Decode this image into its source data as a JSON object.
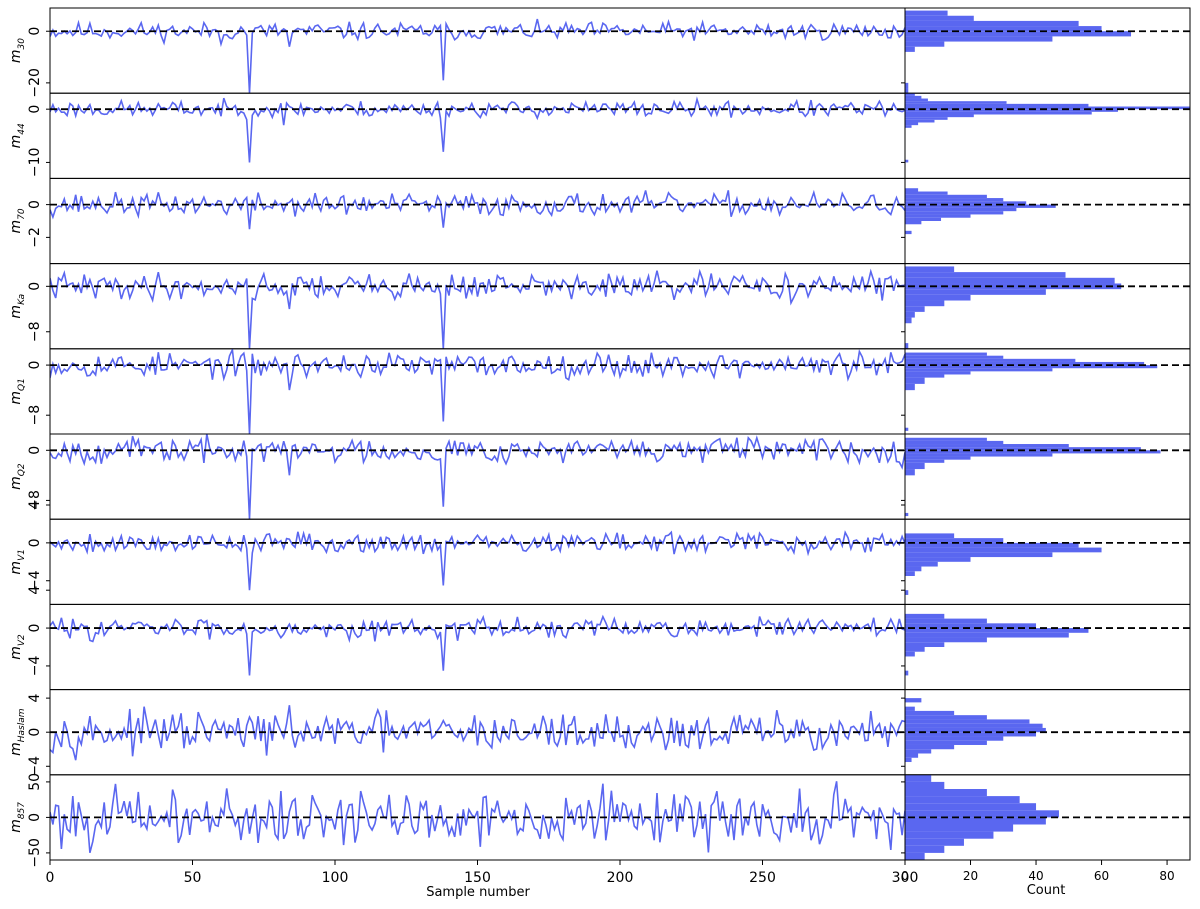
{
  "chart_data": {
    "type": "line",
    "series_color": "#5a67f0",
    "reference_line_color": "#000000",
    "x_axis": {
      "xlabel": "Sample number",
      "xlim": [
        0,
        300
      ],
      "ticks": [
        0,
        50,
        100,
        150,
        200,
        250,
        300
      ],
      "tick_labels": [
        "0",
        "50",
        "100",
        "150",
        "200",
        "250",
        "300"
      ]
    },
    "hist_axis": {
      "xlabel": "Count",
      "xlim": [
        0,
        87
      ],
      "ticks": [
        0,
        20,
        40,
        60,
        80
      ],
      "tick_labels": [
        "0",
        "20",
        "40",
        "60",
        "80"
      ]
    },
    "panels": [
      {
        "label_main": "m",
        "label_sub": "30",
        "ylim": [
          -24,
          9
        ],
        "yticks": [
          0,
          -20
        ],
        "ytick_labels": [
          "0",
          "−20"
        ],
        "trace": {
          "seed": 11,
          "sd": 2.2,
          "spikes": [
            [
              70,
              -24
            ],
            [
              138,
              -19
            ],
            [
              84,
              -6
            ],
            [
              60,
              -5
            ]
          ]
        },
        "hist": {
          "bins": [
            [
              -24,
              -22,
              1
            ],
            [
              -22,
              -20,
              1
            ],
            [
              8,
              6,
              13
            ],
            [
              6,
              4,
              21
            ],
            [
              4,
              2,
              53
            ],
            [
              2,
              0,
              60
            ],
            [
              0,
              -2,
              69
            ],
            [
              -2,
              -4,
              45
            ],
            [
              -4,
              -6,
              12
            ],
            [
              -6,
              -8,
              3
            ]
          ]
        }
      },
      {
        "label_main": "m",
        "label_sub": "44",
        "ylim": [
          -13,
          3
        ],
        "yticks": [
          0,
          -10
        ],
        "ytick_labels": [
          "0",
          "−10"
        ],
        "trace": {
          "seed": 23,
          "sd": 1.0,
          "spikes": [
            [
              70,
              -10
            ],
            [
              138,
              -8
            ],
            [
              82,
              -3
            ]
          ]
        },
        "hist": {
          "bins": [
            [
              -10,
              -9.5,
              1
            ],
            [
              3,
              2.5,
              3
            ],
            [
              2.5,
              2,
              5
            ],
            [
              2,
              1.5,
              7
            ],
            [
              1.5,
              1,
              31
            ],
            [
              1,
              0.5,
              56
            ],
            [
              0.5,
              0,
              87
            ],
            [
              0,
              -0.5,
              65
            ],
            [
              -0.5,
              -1,
              57
            ],
            [
              -1,
              -1.5,
              21
            ],
            [
              -1.5,
              -2,
              13
            ],
            [
              -2,
              -2.5,
              9
            ],
            [
              -2.5,
              -3,
              4
            ],
            [
              -3,
              -3.5,
              2
            ]
          ]
        }
      },
      {
        "label_main": "m",
        "label_sub": "70",
        "ylim": [
          -3.6,
          1.6
        ],
        "yticks": [
          0,
          -2
        ],
        "ytick_labels": [
          "0",
          "−2"
        ],
        "trace": {
          "seed": 37,
          "sd": 0.45,
          "spikes": [
            [
              70,
              -1.5
            ],
            [
              138,
              -1.4
            ]
          ]
        },
        "hist": {
          "bins": [
            [
              1.0,
              0.8,
              4
            ],
            [
              0.8,
              0.6,
              13
            ],
            [
              0.6,
              0.4,
              25
            ],
            [
              0.4,
              0.2,
              30
            ],
            [
              0.2,
              0,
              37
            ],
            [
              0,
              -0.2,
              46
            ],
            [
              -0.2,
              -0.4,
              34
            ],
            [
              -0.4,
              -0.6,
              30
            ],
            [
              -0.6,
              -0.8,
              20
            ],
            [
              -0.8,
              -1.0,
              11
            ],
            [
              -1.0,
              -1.2,
              5
            ],
            [
              -1.6,
              -1.8,
              2
            ]
          ]
        }
      },
      {
        "label_main": "m",
        "label_sub": "Ka",
        "ylim": [
          -11,
          4
        ],
        "yticks": [
          0,
          -8
        ],
        "ytick_labels": [
          "0",
          "−8"
        ],
        "trace": {
          "seed": 41,
          "sd": 1.5,
          "spikes": [
            [
              70,
              -11
            ],
            [
              138,
              -11
            ],
            [
              84,
              -4
            ]
          ]
        },
        "hist": {
          "bins": [
            [
              3.5,
              2.5,
              15
            ],
            [
              2.5,
              1.5,
              49
            ],
            [
              1.5,
              0.5,
              64
            ],
            [
              0.5,
              -0.5,
              66
            ],
            [
              -0.5,
              -1.5,
              43
            ],
            [
              -1.5,
              -2.5,
              20
            ],
            [
              -2.5,
              -3.5,
              12
            ],
            [
              -3.5,
              -4.5,
              6
            ],
            [
              -4.5,
              -5.5,
              3
            ],
            [
              -5.5,
              -6.5,
              2
            ],
            [
              -10,
              -11,
              1
            ]
          ]
        }
      },
      {
        "label_main": "m",
        "label_sub": "Q1",
        "ylim": [
          -11,
          2.6
        ],
        "yticks": [
          0,
          -8
        ],
        "ytick_labels": [
          "0",
          "−8"
        ],
        "trace": {
          "seed": 53,
          "sd": 1.3,
          "spikes": [
            [
              70,
              -11
            ],
            [
              138,
              -9
            ],
            [
              84,
              -4
            ]
          ]
        },
        "hist": {
          "bins": [
            [
              2,
              1.5,
              25
            ],
            [
              1.5,
              1,
              30
            ],
            [
              1,
              0.5,
              52
            ],
            [
              0.5,
              0,
              73
            ],
            [
              0,
              -0.5,
              77
            ],
            [
              -0.5,
              -1,
              45
            ],
            [
              -1,
              -1.5,
              20
            ],
            [
              -1.5,
              -2,
              12
            ],
            [
              -2,
              -3,
              6
            ],
            [
              -3,
              -4,
              3
            ],
            [
              -10,
              -10.5,
              1
            ]
          ]
        }
      },
      {
        "label_main": "m",
        "label_sub": "Q2",
        "ylim": [
          -11,
          2.6
        ],
        "yticks": [
          0,
          -8
        ],
        "ytick_labels": [
          "0",
          "−8"
        ],
        "trace": {
          "seed": 67,
          "sd": 1.3,
          "spikes": [
            [
              70,
              -11
            ],
            [
              138,
              -9
            ],
            [
              84,
              -4
            ]
          ]
        },
        "hist": {
          "bins": [
            [
              2,
              1.5,
              25
            ],
            [
              1.5,
              1,
              30
            ],
            [
              1,
              0.5,
              50
            ],
            [
              0.5,
              0,
              72
            ],
            [
              0,
              -0.5,
              78
            ],
            [
              -0.5,
              -1,
              45
            ],
            [
              -1,
              -1.5,
              20
            ],
            [
              -1.5,
              -2,
              12
            ],
            [
              -2,
              -3,
              6
            ],
            [
              -3,
              -4,
              3
            ],
            [
              -10,
              -10.5,
              1
            ]
          ]
        }
      },
      {
        "label_main": "m",
        "label_sub": "V1",
        "ylim": [
          -6.5,
          2.5
        ],
        "yticks": [
          4,
          0,
          -4
        ],
        "ytick_labels": [
          "4",
          "0",
          "−4"
        ],
        "trace": {
          "seed": 79,
          "sd": 0.7,
          "spikes": [
            [
              70,
              -5
            ],
            [
              138,
              -4.5
            ]
          ]
        },
        "hist": {
          "bins": [
            [
              1,
              0.5,
              15
            ],
            [
              0.5,
              0,
              30
            ],
            [
              0,
              -0.5,
              53
            ],
            [
              -0.5,
              -1,
              60
            ],
            [
              -1,
              -1.5,
              45
            ],
            [
              -1.5,
              -2,
              20
            ],
            [
              -2,
              -2.5,
              10
            ],
            [
              -2.5,
              -3,
              5
            ],
            [
              -3,
              -3.5,
              3
            ],
            [
              -5,
              -5.5,
              1
            ]
          ]
        }
      },
      {
        "label_main": "m",
        "label_sub": "V2",
        "ylim": [
          -6.5,
          2.5
        ],
        "yticks": [
          4,
          0,
          -4
        ],
        "ytick_labels": [
          "4",
          "0",
          "−4"
        ],
        "trace": {
          "seed": 83,
          "sd": 0.7,
          "spikes": [
            [
              70,
              -5
            ],
            [
              138,
              -4.5
            ]
          ]
        },
        "hist": {
          "bins": [
            [
              1.5,
              1,
              12
            ],
            [
              1,
              0.5,
              25
            ],
            [
              0.5,
              0,
              40
            ],
            [
              0,
              -0.5,
              56
            ],
            [
              -0.5,
              -1,
              50
            ],
            [
              -1,
              -1.5,
              25
            ],
            [
              -1.5,
              -2,
              12
            ],
            [
              -2,
              -2.5,
              6
            ],
            [
              -2.5,
              -3,
              3
            ],
            [
              -4.5,
              -5,
              1
            ]
          ]
        }
      },
      {
        "label_main": "m",
        "label_sub": "Haslam",
        "ylim": [
          -5,
          5
        ],
        "yticks": [
          4,
          0,
          -4
        ],
        "ytick_labels": [
          "4",
          "0",
          "−4"
        ],
        "trace": {
          "seed": 97,
          "sd": 1.5,
          "spikes": []
        },
        "hist": {
          "bins": [
            [
              4,
              3.5,
              5
            ],
            [
              3,
              2.5,
              3
            ],
            [
              2.5,
              2,
              15
            ],
            [
              2,
              1.5,
              25
            ],
            [
              1.5,
              1,
              38
            ],
            [
              1,
              0.5,
              42
            ],
            [
              0.5,
              0,
              43
            ],
            [
              0,
              -0.5,
              40
            ],
            [
              -0.5,
              -1,
              30
            ],
            [
              -1,
              -1.5,
              25
            ],
            [
              -1.5,
              -2,
              15
            ],
            [
              -2,
              -2.5,
              8
            ],
            [
              -2.5,
              -3,
              4
            ],
            [
              -3,
              -3.5,
              2
            ]
          ]
        }
      },
      {
        "label_main": "m",
        "label_sub": "857",
        "ylim": [
          -60,
          60
        ],
        "yticks": [
          50,
          0,
          -50
        ],
        "ytick_labels": [
          "50",
          "0",
          "−50"
        ],
        "trace": {
          "seed": 101,
          "sd": 26,
          "spikes": []
        },
        "hist": {
          "bins": [
            [
              60,
              50,
              8
            ],
            [
              50,
              40,
              12
            ],
            [
              40,
              30,
              25
            ],
            [
              30,
              20,
              35
            ],
            [
              20,
              10,
              40
            ],
            [
              10,
              0,
              47
            ],
            [
              0,
              -10,
              43
            ],
            [
              -10,
              -20,
              33
            ],
            [
              -20,
              -30,
              27
            ],
            [
              -30,
              -40,
              18
            ],
            [
              -40,
              -50,
              12
            ],
            [
              -50,
              -60,
              6
            ]
          ]
        }
      }
    ]
  }
}
